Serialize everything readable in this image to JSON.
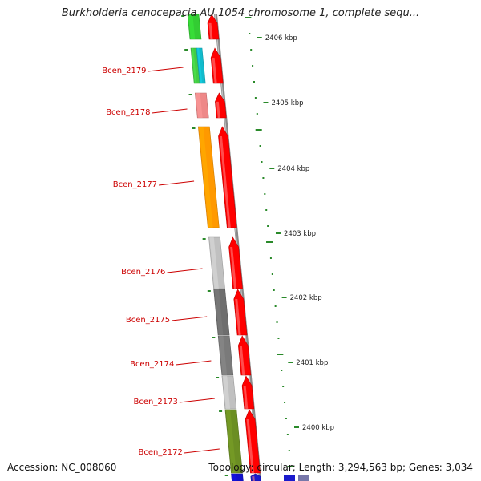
{
  "title": "Burkholderia cenocepacia AU 1054 chromosome 1, complete sequ...",
  "footer": {
    "accession": "Accession: NC_008060",
    "summary": "Topology: circular; Length: 3,294,563 bp; Genes: 3,034"
  },
  "colors": {
    "forward_cds": "#ff0000",
    "backbone": "#8a8a8a",
    "gc_ticks": "#2a8a2a",
    "label_text": "#cc0000"
  },
  "scale_ticks": [
    "2406 kbp",
    "2405 kbp",
    "2404 kbp",
    "2403 kbp",
    "2402 kbp",
    "2401 kbp",
    "2400 kbp"
  ],
  "genes": [
    {
      "name": "",
      "cog_color": "#33cc33",
      "cog_color2": "#33cc33"
    },
    {
      "name": "Bcen_2179",
      "cog_color": "#44cc44",
      "cog_color2": "#11bbcc"
    },
    {
      "name": "Bcen_2178",
      "cog_color": "#ee8888",
      "cog_color2": "#ee8888"
    },
    {
      "name": "Bcen_2177",
      "cog_color": "#ff9900",
      "cog_color2": "#ff9900"
    },
    {
      "name": "Bcen_2176",
      "cog_color": "#c0c0c0",
      "cog_color2": "#c0c0c0"
    },
    {
      "name": "Bcen_2175",
      "cog_color": "#6e6e6e",
      "cog_color2": "#6e6e6e"
    },
    {
      "name": "Bcen_2174",
      "cog_color": "#7a7a7a",
      "cog_color2": "#7a7a7a"
    },
    {
      "name": "Bcen_2173",
      "cog_color": "#c0c0c0",
      "cog_color2": "#c0c0c0"
    },
    {
      "name": "Bcen_2172",
      "cog_color": "#6b8e23",
      "cog_color2": "#6b8e23"
    },
    {
      "name": "",
      "cog_color": "#1111cc",
      "cog_color2": "#1111cc"
    }
  ]
}
